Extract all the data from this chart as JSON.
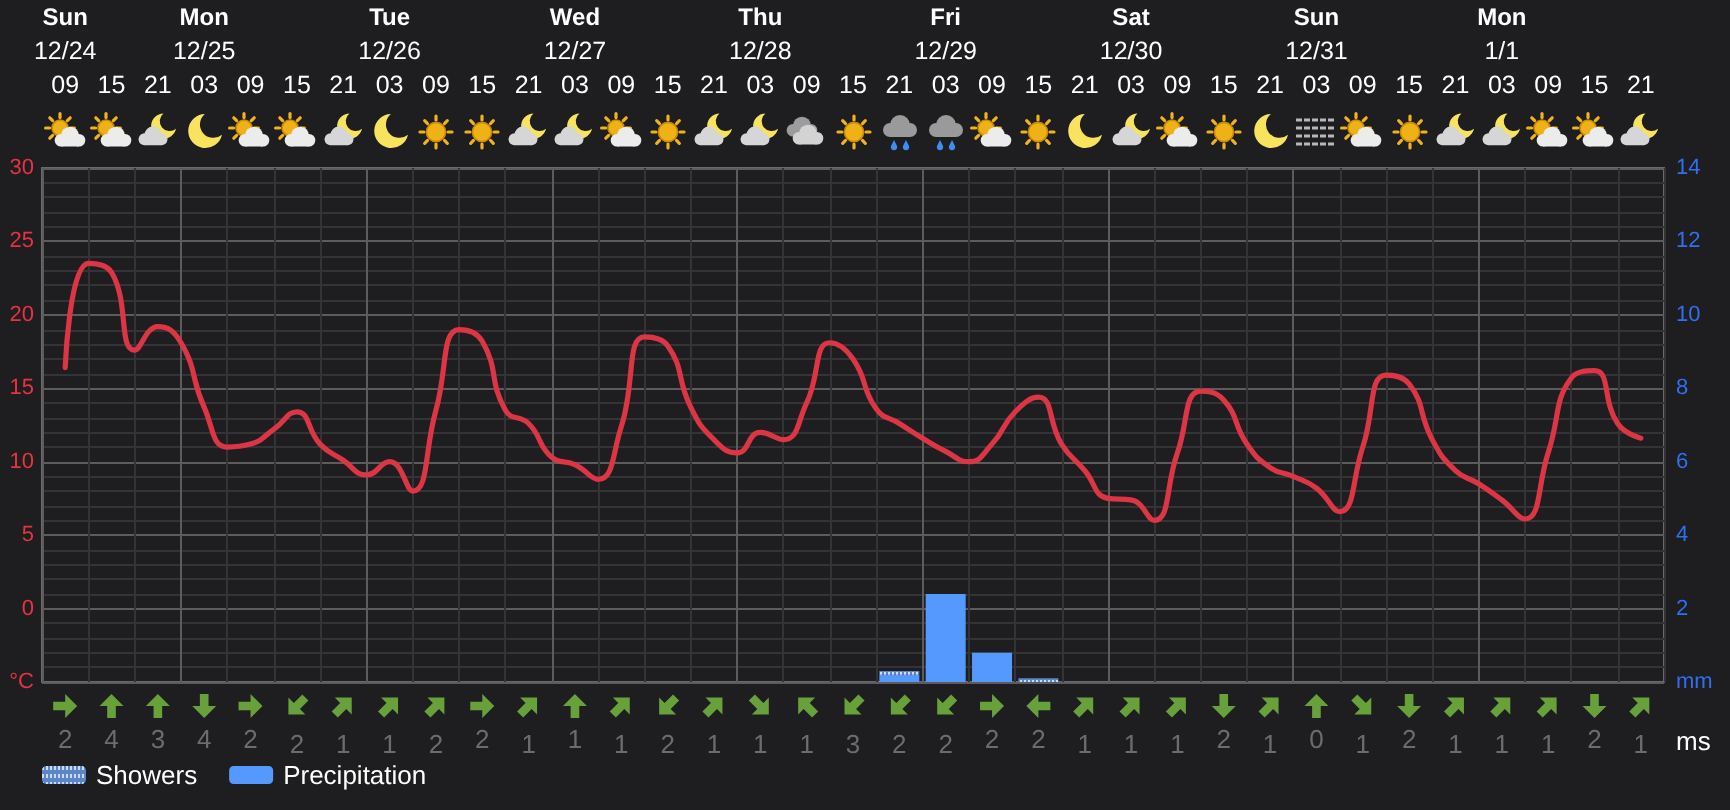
{
  "chart_data": [
    {
      "type": "line",
      "grid": true,
      "legend": "bottom left",
      "stacked": true,
      "categories": [
        null,
        "Sun\n12/24\n09",
        null,
        "15",
        null,
        "21",
        null,
        "Mon\n12/25\n03",
        null,
        "09",
        null,
        "15",
        null,
        "21",
        null,
        "Tue\n12/26\n03",
        null,
        "09",
        null,
        "15",
        null,
        "21",
        null,
        "Wed\n12/27\n03",
        null,
        "09",
        null,
        "15",
        null,
        "21",
        null,
        "Thu\n12/28\n03",
        null,
        "09",
        null,
        "15",
        null,
        "21",
        null,
        "Fri\n12/29\n03",
        null,
        "09",
        null,
        "15",
        null,
        "21",
        null,
        "Sat\n12/30\n03",
        null,
        "09",
        null,
        "15",
        null,
        "21",
        null,
        "Sun\n12/31\n03",
        null,
        "09",
        null,
        "15",
        null,
        "21",
        null,
        "Mon\n1/1\n03",
        null,
        "09",
        null,
        "15",
        null,
        "21",
        null
      ],
      "ylim": [
        -5,
        30
      ],
      "yticks": [
        {
          "value": -5,
          "label": "°C"
        },
        0,
        5,
        10,
        15,
        20,
        25,
        30
      ],
      "y2lim": [
        0,
        14
      ],
      "y2ticks": [
        {
          "value": 0,
          "label": "mm"
        },
        2,
        4,
        6,
        8,
        10,
        12,
        14
      ],
      "series": [
        {
          "type": "line",
          "color": "#dc3545",
          "values": [
            null,
            16.4,
            23.5,
            22.9,
            17.6,
            19.2,
            18.1,
            13.7,
            11.0,
            11.2,
            12.2,
            13.4,
            11.2,
            10.1,
            9.1,
            10.0,
            8.0,
            13.5,
            19.0,
            18.2,
            13.5,
            12.6,
            10.3,
            9.8,
            8.8,
            12.4,
            18.5,
            17.9,
            13.7,
            11.5,
            10.6,
            12.0,
            11.5,
            14.0,
            18.1,
            17.0,
            13.6,
            12.6,
            11.6,
            10.7,
            10.0,
            11.2,
            13.4,
            14.4,
            11.2,
            9.4,
            7.5,
            7.4,
            6.0,
            10.6,
            14.8,
            14.2,
            11.2,
            9.6,
            9.0,
            8.2,
            6.6,
            11.0,
            15.9,
            15.3,
            11.5,
            9.4,
            8.5,
            7.4,
            6.1,
            10.6,
            15.7,
            16.2,
            12.6,
            11.6,
            null
          ]
        },
        {
          "type": "bar",
          "name": "Precipitation",
          "color": "#5599ff",
          "axis": "y2",
          "values": [
            null,
            null,
            null,
            null,
            null,
            null,
            null,
            null,
            null,
            null,
            null,
            null,
            null,
            null,
            null,
            null,
            null,
            null,
            null,
            null,
            null,
            null,
            null,
            null,
            null,
            null,
            null,
            null,
            null,
            null,
            null,
            null,
            null,
            null,
            null,
            null,
            null,
            0.2,
            null,
            2.4,
            null,
            0.8,
            null,
            null,
            null,
            null,
            null,
            null,
            null,
            null,
            null,
            null,
            null,
            null,
            null,
            null,
            null,
            null,
            null,
            null,
            null,
            null,
            null,
            null,
            null,
            null,
            null,
            null,
            null,
            null,
            null
          ]
        },
        {
          "type": "bar",
          "name": "Showers",
          "color": "#5b86c8",
          "axis": "y2",
          "values": [
            null,
            null,
            null,
            null,
            null,
            null,
            null,
            null,
            null,
            null,
            null,
            null,
            null,
            null,
            null,
            null,
            null,
            null,
            null,
            null,
            null,
            null,
            null,
            null,
            null,
            null,
            null,
            null,
            null,
            null,
            null,
            null,
            null,
            null,
            null,
            null,
            null,
            0.1,
            null,
            null,
            null,
            null,
            null,
            0.1,
            null,
            null,
            null,
            null,
            null,
            null,
            null,
            null,
            null,
            null,
            null,
            null,
            null,
            null,
            null,
            null,
            null,
            null,
            null,
            null,
            null,
            null,
            null,
            null,
            null,
            null,
            null
          ]
        }
      ]
    },
    {
      "type": "other",
      "categories": [
        null,
        null,
        null,
        null,
        null,
        null,
        null,
        null,
        null,
        null,
        null,
        null,
        null,
        null,
        null,
        null,
        null,
        null,
        null,
        null,
        null,
        null,
        null,
        null,
        null,
        null,
        null,
        null,
        null,
        null,
        null,
        null,
        null,
        null,
        null
      ],
      "values": [
        2,
        4,
        3,
        4,
        2,
        2,
        1,
        1,
        2,
        2,
        1,
        1,
        1,
        2,
        1,
        1,
        1,
        3,
        2,
        2,
        2,
        2,
        1,
        1,
        1,
        2,
        1,
        0,
        1,
        2,
        1,
        1,
        1,
        2,
        1
      ],
      "data_labels": true,
      "ylabel": "ms"
    }
  ]
}
